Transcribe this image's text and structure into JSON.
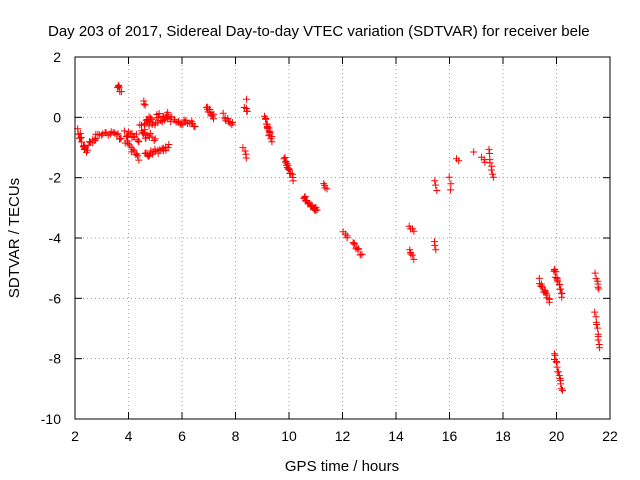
{
  "chart_data": {
    "type": "scatter",
    "title": "Day 203 of 2017, Sidereal Day-to-day VTEC variation (SDTVAR) for receiver bele",
    "xlabel": "GPS time / hours",
    "ylabel": "SDTVAR / TECUs",
    "xlim": [
      2,
      22
    ],
    "ylim": [
      -10,
      2
    ],
    "xticks": [
      2,
      4,
      6,
      8,
      10,
      12,
      14,
      16,
      18,
      20,
      22
    ],
    "yticks": [
      2,
      0,
      -2,
      -4,
      -6,
      -8,
      -10
    ],
    "grid": true,
    "marker": "+",
    "series": [
      {
        "name": "SDTVAR",
        "color": "#ff0000",
        "clusters": [
          {
            "x0": 2.1,
            "x1": 2.4,
            "y0": -0.5,
            "y1": -1.1,
            "n": 12,
            "spread": 0.15
          },
          {
            "x0": 2.35,
            "x1": 2.8,
            "y0": -1.1,
            "y1": -0.7,
            "n": 12,
            "spread": 0.15
          },
          {
            "x0": 2.8,
            "x1": 3.5,
            "y0": -0.6,
            "y1": -0.5,
            "n": 12,
            "spread": 0.06
          },
          {
            "x0": 3.5,
            "x1": 3.75,
            "y0": -0.5,
            "y1": -0.75,
            "n": 6,
            "spread": 0.08
          },
          {
            "x0": 3.6,
            "x1": 3.72,
            "y0": 1.0,
            "y1": 0.9,
            "n": 6,
            "spread": 0.08
          },
          {
            "x0": 3.85,
            "x1": 4.4,
            "y0": -0.5,
            "y1": -0.7,
            "n": 14,
            "spread": 0.12
          },
          {
            "x0": 3.9,
            "x1": 4.4,
            "y0": -0.8,
            "y1": -1.3,
            "n": 12,
            "spread": 0.12
          },
          {
            "x0": 4.45,
            "x1": 4.65,
            "y0": -0.3,
            "y1": -0.7,
            "n": 8,
            "spread": 0.1
          },
          {
            "x0": 4.55,
            "x1": 4.65,
            "y0": 0.55,
            "y1": 0.4,
            "n": 3,
            "spread": 0.05
          },
          {
            "x0": 4.6,
            "x1": 5.5,
            "y0": -0.2,
            "y1": 0.05,
            "n": 30,
            "spread": 0.18
          },
          {
            "x0": 4.6,
            "x1": 5.5,
            "y0": -1.25,
            "y1": -1.0,
            "n": 22,
            "spread": 0.1
          },
          {
            "x0": 4.6,
            "x1": 5.0,
            "y0": -0.5,
            "y1": -0.7,
            "n": 8,
            "spread": 0.1
          },
          {
            "x0": 5.5,
            "x1": 6.5,
            "y0": -0.05,
            "y1": -0.25,
            "n": 22,
            "spread": 0.1
          },
          {
            "x0": 6.9,
            "x1": 7.2,
            "y0": 0.4,
            "y1": 0.0,
            "n": 12,
            "spread": 0.12
          },
          {
            "x0": 7.55,
            "x1": 7.9,
            "y0": 0.1,
            "y1": -0.25,
            "n": 10,
            "spread": 0.1
          },
          {
            "x0": 8.35,
            "x1": 8.45,
            "y0": 0.3,
            "y1": 0.2,
            "n": 4,
            "spread": 0.05
          },
          {
            "x0": 8.4,
            "x1": 8.45,
            "y0": 0.6,
            "y1": 0.6,
            "n": 1,
            "spread": 0.0
          },
          {
            "x0": 8.3,
            "x1": 8.4,
            "y0": -1.05,
            "y1": -1.35,
            "n": 4,
            "spread": 0.05
          },
          {
            "x0": 9.1,
            "x1": 9.35,
            "y0": 0.0,
            "y1": -0.75,
            "n": 18,
            "spread": 0.08
          },
          {
            "x0": 9.8,
            "x1": 10.15,
            "y0": -1.35,
            "y1": -2.05,
            "n": 16,
            "spread": 0.08
          },
          {
            "x0": 10.55,
            "x1": 11.05,
            "y0": -2.65,
            "y1": -3.1,
            "n": 20,
            "spread": 0.08
          },
          {
            "x0": 11.3,
            "x1": 11.4,
            "y0": -2.15,
            "y1": -2.4,
            "n": 4,
            "spread": 0.05
          },
          {
            "x0": 12.05,
            "x1": 12.2,
            "y0": -3.8,
            "y1": -3.95,
            "n": 4,
            "spread": 0.05
          },
          {
            "x0": 12.4,
            "x1": 12.7,
            "y0": -4.15,
            "y1": -4.6,
            "n": 10,
            "spread": 0.07
          },
          {
            "x0": 14.5,
            "x1": 14.65,
            "y0": -3.65,
            "y1": -3.75,
            "n": 4,
            "spread": 0.04
          },
          {
            "x0": 14.5,
            "x1": 14.65,
            "y0": -4.35,
            "y1": -4.7,
            "n": 5,
            "spread": 0.06
          },
          {
            "x0": 15.45,
            "x1": 15.5,
            "y0": -2.1,
            "y1": -2.4,
            "n": 3,
            "spread": 0.03
          },
          {
            "x0": 15.45,
            "x1": 15.5,
            "y0": -4.1,
            "y1": -4.4,
            "n": 3,
            "spread": 0.03
          },
          {
            "x0": 16.0,
            "x1": 16.05,
            "y0": -2.0,
            "y1": -2.4,
            "n": 3,
            "spread": 0.03
          },
          {
            "x0": 16.25,
            "x1": 16.35,
            "y0": -1.35,
            "y1": -1.45,
            "n": 2,
            "spread": 0.03
          },
          {
            "x0": 16.9,
            "x1": 16.95,
            "y0": -1.15,
            "y1": -1.15,
            "n": 1,
            "spread": 0.0
          },
          {
            "x0": 17.2,
            "x1": 17.35,
            "y0": -1.35,
            "y1": -1.5,
            "n": 3,
            "spread": 0.04
          },
          {
            "x0": 17.45,
            "x1": 17.65,
            "y0": -1.1,
            "y1": -2.0,
            "n": 8,
            "spread": 0.06
          },
          {
            "x0": 19.35,
            "x1": 19.75,
            "y0": -5.4,
            "y1": -6.1,
            "n": 16,
            "spread": 0.12
          },
          {
            "x0": 19.9,
            "x1": 20.2,
            "y0": -5.0,
            "y1": -5.9,
            "n": 16,
            "spread": 0.08
          },
          {
            "x0": 19.9,
            "x1": 20.2,
            "y0": -7.8,
            "y1": -9.05,
            "n": 14,
            "spread": 0.06
          },
          {
            "x0": 21.45,
            "x1": 21.6,
            "y0": -5.2,
            "y1": -5.7,
            "n": 6,
            "spread": 0.06
          },
          {
            "x0": 21.45,
            "x1": 21.6,
            "y0": -6.5,
            "y1": -7.65,
            "n": 10,
            "spread": 0.06
          }
        ]
      }
    ]
  }
}
